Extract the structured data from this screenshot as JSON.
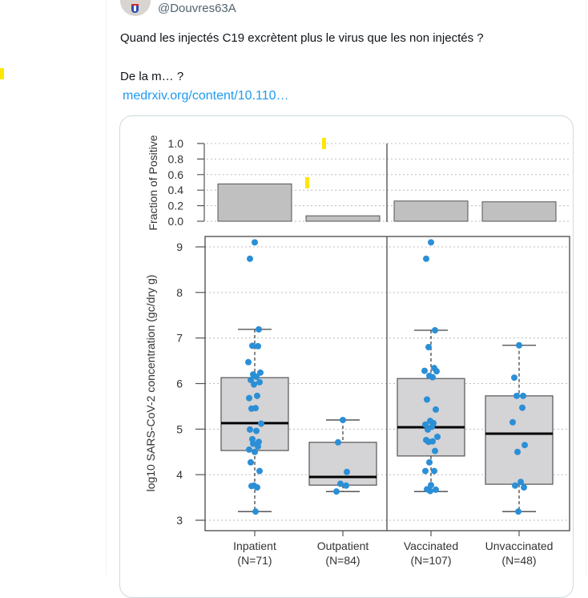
{
  "tweet": {
    "handle": "@Douvres63A",
    "line1": "Quand les injectés C19 excrètent plus le virus que les non injectés ?",
    "line2": "De la m… ?",
    "link": "medrxiv.org/content/10.110…"
  },
  "colors": {
    "point": "#2b8fd6",
    "box_fill": "#d4d3d5",
    "bar_fill": "#c0c0c0",
    "link": "#1d9bf0",
    "highlight": "#ffe600"
  },
  "chart_data": [
    {
      "type": "bar",
      "title": "",
      "ylabel": "Fraction of Positive",
      "ylim": [
        0,
        1
      ],
      "yticks": [
        "0.0",
        "0.2",
        "0.4",
        "0.6",
        "0.8",
        "1.0"
      ],
      "grid": true,
      "categories": [
        "Inpatient",
        "Outpatient",
        "Vaccinated",
        "Unvaccinated"
      ],
      "values": [
        0.48,
        0.07,
        0.26,
        0.25
      ]
    },
    {
      "type": "box",
      "ylabel": "log10 SARS-CoV-2 concentration (gc/dry g)",
      "ylim": [
        3,
        9
      ],
      "yticks": [
        "3",
        "4",
        "5",
        "6",
        "7",
        "8",
        "9"
      ],
      "grid": true,
      "categories": [
        {
          "name": "Inpatient",
          "n": "(N=71)"
        },
        {
          "name": "Outpatient",
          "n": "(N=84)"
        },
        {
          "name": "Vaccinated",
          "n": "(N=107)"
        },
        {
          "name": "Unvaccinated",
          "n": "(N=48)"
        }
      ],
      "boxes": [
        {
          "whisker_low": 3.19,
          "q1": 4.53,
          "median": 5.13,
          "q3": 6.13,
          "whisker_high": 7.19,
          "points": [
            9.1,
            8.74,
            7.19,
            6.83,
            6.82,
            6.47,
            6.24,
            6.2,
            6.15,
            6.08,
            6.03,
            5.98,
            5.73,
            5.68,
            5.46,
            5.45,
            5.12,
            4.99,
            4.96,
            4.78,
            4.72,
            4.68,
            4.62,
            4.55,
            4.5,
            4.27,
            4.08,
            3.76,
            3.72,
            3.75,
            3.19
          ]
        },
        {
          "whisker_low": 3.63,
          "q1": 3.77,
          "median": 3.95,
          "q3": 4.71,
          "whisker_high": 5.2,
          "points": [
            5.2,
            4.71,
            4.06,
            3.8,
            3.76,
            3.63
          ]
        },
        {
          "whisker_low": 3.63,
          "q1": 4.41,
          "median": 5.04,
          "q3": 6.11,
          "whisker_high": 7.17,
          "points": [
            9.1,
            8.74,
            7.17,
            6.8,
            6.34,
            6.28,
            6.27,
            6.17,
            6.14,
            5.65,
            5.43,
            5.18,
            5.13,
            5.1,
            5.05,
            4.99,
            4.83,
            4.76,
            4.73,
            4.72,
            4.52,
            4.27,
            4.08,
            4.08,
            3.77,
            3.68,
            3.67,
            3.64
          ]
        },
        {
          "whisker_low": 3.19,
          "q1": 3.79,
          "median": 4.9,
          "q3": 5.73,
          "whisker_high": 6.84,
          "points": [
            6.84,
            6.13,
            5.73,
            5.73,
            5.47,
            5.15,
            4.65,
            4.5,
            3.84,
            3.76,
            3.72,
            3.19
          ]
        }
      ]
    }
  ]
}
